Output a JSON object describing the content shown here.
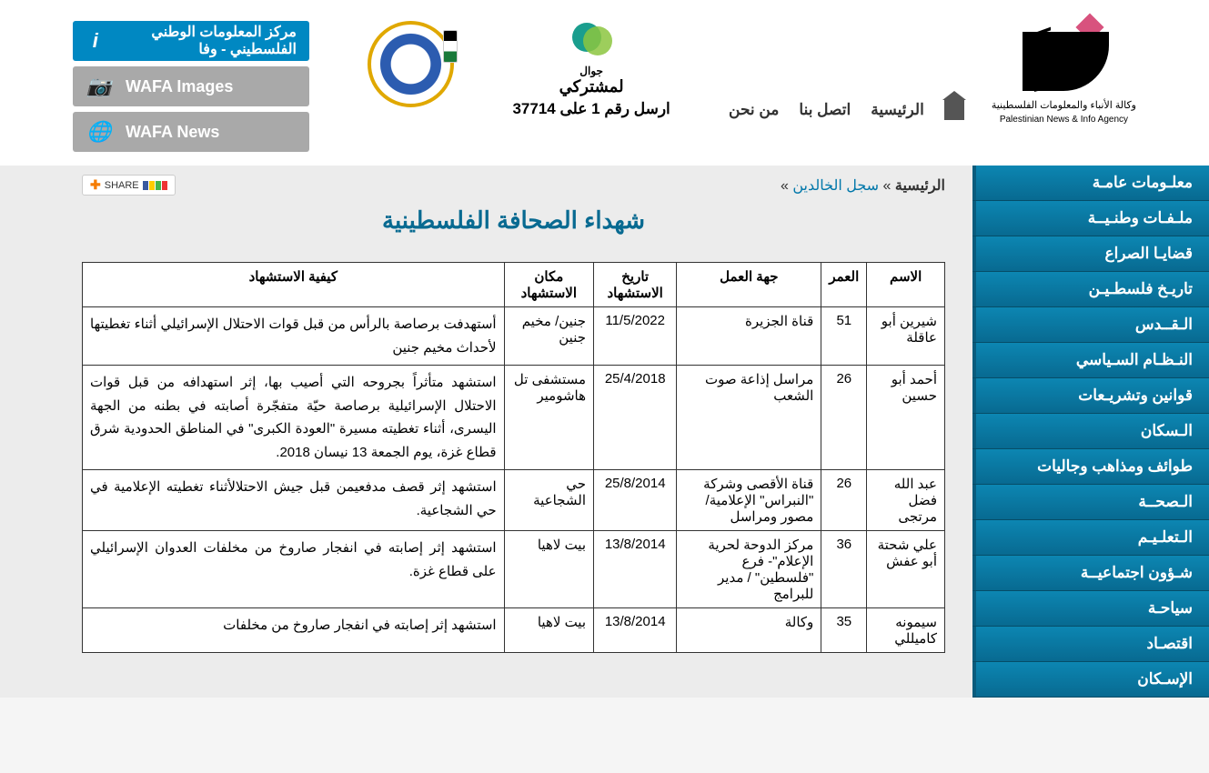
{
  "header": {
    "logo_word": "WAFA",
    "logo_ar_caption": "وكالة الأنباء والمعلومات الفلسطينية",
    "logo_en_caption": "Palestinian News & Info Agency",
    "nav": {
      "home": "الرئيسية",
      "contact": "اتصل بنا",
      "about": "من نحن"
    },
    "subscribe": {
      "jawwal_label": "جوال",
      "line1": "لمشتركي",
      "line2": "ارسل رقم 1 على 37714"
    },
    "buttons": {
      "info": "مركز المعلومات الوطني الفلسطيني - وفا",
      "images": "WAFA Images",
      "news": "WAFA News"
    }
  },
  "sidebar": {
    "items": [
      "معلـومات عامـة",
      "ملـفـات وطنـيــة",
      "قضايـا الصراع",
      "تاريـخ فلسطـيـن",
      "الـقــدس",
      "النـظـام السـياسي",
      "قوانين وتشريـعات",
      "الـسكان",
      "طوائف ومذاهب وجاليات",
      "الـصحــة",
      "الـتعلـيـم",
      "شـؤون اجتماعيــة",
      "سياحـة",
      "اقتصـاد",
      "الإسـكان"
    ]
  },
  "breadcrumb": {
    "home": "الرئيسية",
    "sep": "»",
    "l1": "سجل الخالدين",
    "share_label": "SHARE"
  },
  "page_title": "شهداء الصحافة الفلسطينية",
  "table": {
    "headers": [
      "الاسم",
      "العمر",
      "جهة العمل",
      "تاريخ الاستشهاد",
      "مكان الاستشهاد",
      "كيفية الاستشهاد"
    ],
    "rows": [
      {
        "name": "شيرين أبو عاقلة",
        "age": "51",
        "employer": "قناة الجزيرة",
        "date": "11/5/2022",
        "place": "جنين/ مخيم جنين",
        "how": "أستهدفت برصاصة بالرأس من قبل قوات الاحتلال الإسرائيلي أثناء تغطيتها لأحداث مخيم جنين"
      },
      {
        "name": "أحمد أبو حسين",
        "age": "26",
        "employer": "مراسل إذاعة صوت الشعب",
        "date": "25/4/2018",
        "place": "مستشفى تل هاشومير",
        "how": "استشهد متأثراً بجروحه التي أصيب بها، إثر استهدافه من قبل قوات الاحتلال الإسرائيلية برصاصة حيّة متفجّرة أصابته في بطنه من الجهة اليسرى، أثناء تغطيته مسيرة \"العودة الكبرى\" في المناطق الحدودية شرق قطاع غزة، يوم الجمعة 13 نيسان 2018."
      },
      {
        "name": "عبد الله فضل مرتجى",
        "age": "26",
        "employer": "قناة الأقصى وشركة \"النبراس\" الإعلامية/ مصور ومراسل",
        "date": "25/8/2014",
        "place": "حي الشجاعية",
        "how": "استشهد إثر قصف مدفعيمن قبل جيش الاحتلالأثناء تغطيته الإعلامية في حي الشجاعية."
      },
      {
        "name": "علي شحتة أبو عفش",
        "age": "36",
        "employer": "مركز الدوحة لحرية الإعلام\"- فرع \"فلسطين\" / مدير للبرامج",
        "date": "13/8/2014",
        "place": "بيت لاهيا",
        "how": "استشهد إثر إصابته في انفجار صاروخ من مخلفات العدوان الإسرائيلي على قطاع غزة."
      },
      {
        "name": "سيمونه كاميللي",
        "age": "35",
        "employer": "وكالة",
        "date": "13/8/2014",
        "place": "بيت لاهيا",
        "how": "استشهد إثر إصابته في انفجار صاروخ من مخلفات"
      }
    ]
  }
}
